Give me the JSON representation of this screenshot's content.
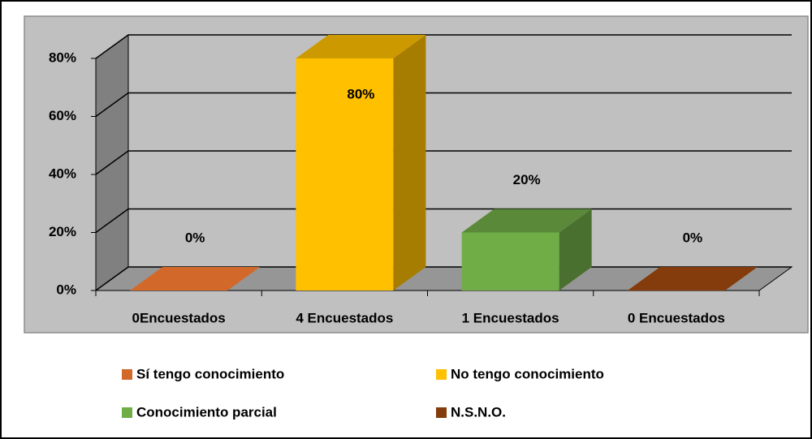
{
  "chart_data": {
    "type": "bar3d",
    "categories": [
      "0Encuestados",
      "4 Encuestados",
      "1 Encuestados",
      "0 Encuestados"
    ],
    "series": [
      {
        "name": "Sí tengo conocimiento",
        "color": "#d2692a",
        "values": [
          0,
          null,
          null,
          null
        ],
        "value_labels": [
          "0%",
          null,
          null,
          null
        ]
      },
      {
        "name": "No tengo conocimiento",
        "color": "#ffc000",
        "values": [
          null,
          80,
          null,
          null
        ],
        "value_labels": [
          null,
          "80%",
          null,
          null
        ]
      },
      {
        "name": "Conocimiento parcial",
        "color": "#70ad47",
        "values": [
          null,
          null,
          20,
          null
        ],
        "value_labels": [
          null,
          null,
          "20%",
          null
        ]
      },
      {
        "name": "N.S.N.O.",
        "color": "#843c0c",
        "values": [
          null,
          null,
          null,
          0
        ],
        "value_labels": [
          null,
          null,
          null,
          "0%"
        ]
      }
    ],
    "ylim": [
      0,
      80
    ],
    "yticks": [
      {
        "value": 0,
        "label": "0%"
      },
      {
        "value": 20,
        "label": "20%"
      },
      {
        "value": 40,
        "label": "40%"
      },
      {
        "value": 60,
        "label": "60%"
      },
      {
        "value": 80,
        "label": "80%"
      }
    ],
    "grid": true
  }
}
